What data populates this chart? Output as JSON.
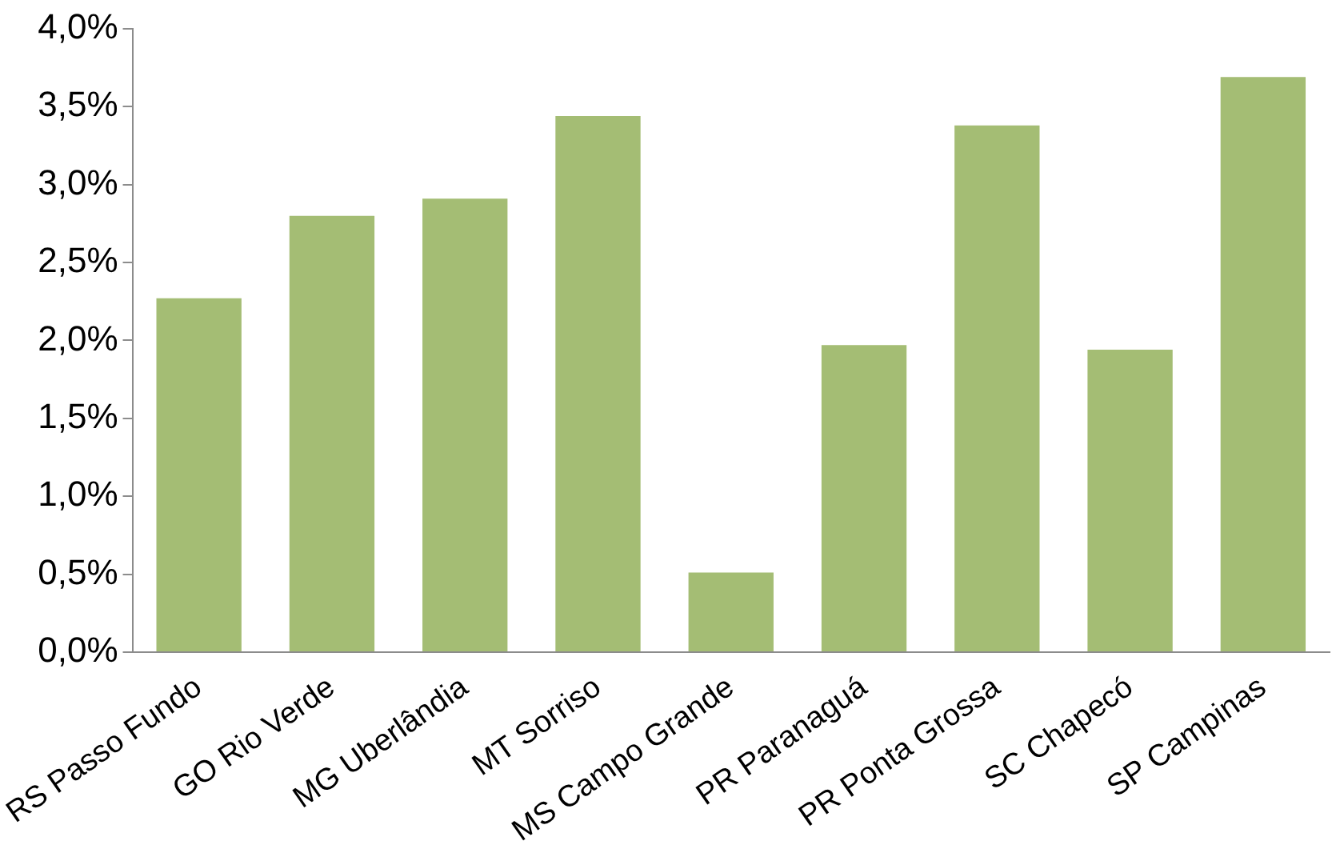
{
  "chart_data": {
    "type": "bar",
    "categories": [
      "RS Passo Fundo",
      "GO Rio Verde",
      "MG Uberlândia",
      "MT Sorriso",
      "MS Campo Grande",
      "PR Paranaguá",
      "PR Ponta Grossa",
      "SC Chapecó",
      "SP Campinas"
    ],
    "values": [
      2.27,
      2.8,
      2.91,
      3.44,
      0.51,
      1.97,
      3.38,
      1.94,
      3.69
    ],
    "color": "#a4bd74",
    "ylim": [
      0,
      4
    ],
    "yticks": [
      {
        "value": 0,
        "label": "0,0%"
      },
      {
        "value": 0.5,
        "label": "0,5%"
      },
      {
        "value": 1,
        "label": "1,0%"
      },
      {
        "value": 1.5,
        "label": "1,5%"
      },
      {
        "value": 2,
        "label": "2,0%"
      },
      {
        "value": 2.5,
        "label": "2,5%"
      },
      {
        "value": 3,
        "label": "3,0%"
      },
      {
        "value": 3.5,
        "label": "3,5%"
      },
      {
        "value": 4,
        "label": "4,0%"
      }
    ],
    "grid": false
  }
}
